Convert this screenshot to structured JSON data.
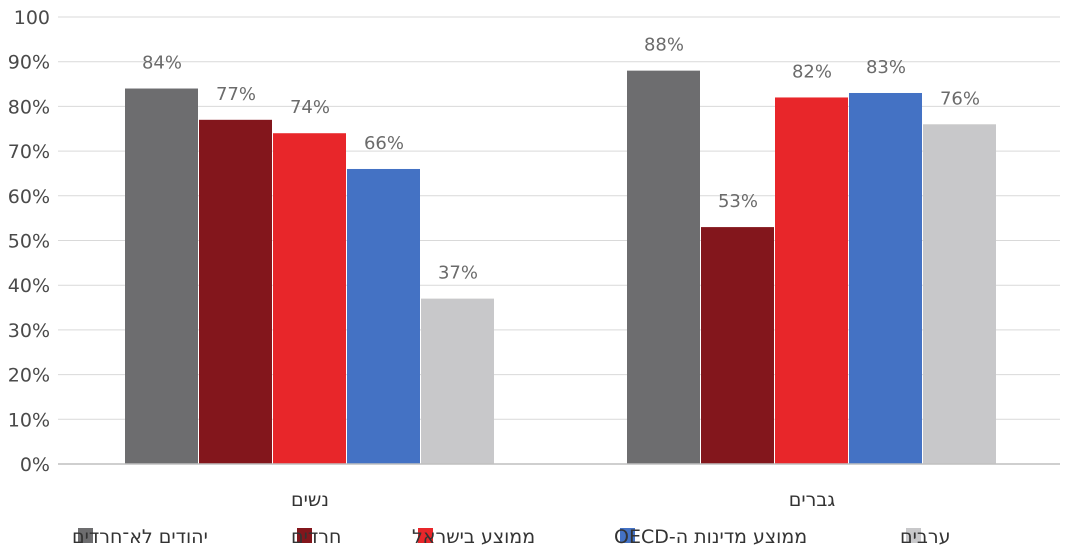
{
  "chart_data": {
    "type": "bar",
    "categories": [
      "נשים",
      "גברים"
    ],
    "series": [
      {
        "name": "יהודים לא־חרדים",
        "color": "#6d6d6f",
        "values": [
          84,
          88
        ]
      },
      {
        "name": "חרדים",
        "color": "#83161c",
        "values": [
          77,
          53
        ]
      },
      {
        "name": "ממוצע בישראל",
        "color": "#e8262a",
        "values": [
          74,
          82
        ]
      },
      {
        "name": "ממוצע מדינות ה-OECD",
        "color": "#4472c4",
        "values": [
          66,
          83
        ]
      },
      {
        "name": "ערבים",
        "color": "#c8c8ca",
        "values": [
          37,
          76
        ]
      }
    ],
    "data_labels": [
      [
        "84%",
        "88%"
      ],
      [
        "77%",
        "53%"
      ],
      [
        "74%",
        "82%"
      ],
      [
        "66%",
        "83%"
      ],
      [
        "37%",
        "76%"
      ]
    ],
    "y_ticks": [
      "0%",
      "10%",
      "20%",
      "30%",
      "40%",
      "50%",
      "60%",
      "70%",
      "80%",
      "90%",
      "100"
    ],
    "ylim": [
      0,
      100
    ],
    "grid": true,
    "legend_position": "bottom"
  }
}
